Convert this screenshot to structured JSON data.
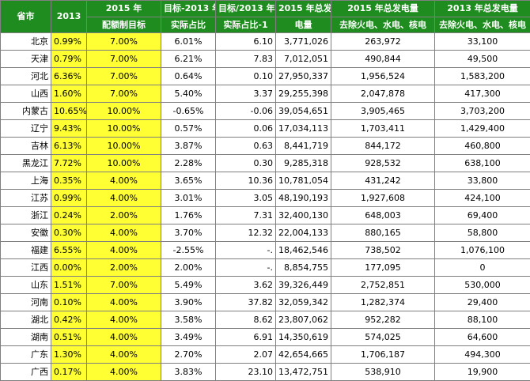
{
  "header": {
    "province": "省市",
    "rate2013": "2013",
    "target2015_l1": "2015 年",
    "target2015_l2": "配额制目标",
    "gap_l1": "目标-2013 年",
    "gap_l2": "实际占比",
    "ratio_l1": "目标/2013 年",
    "ratio_l2": "实际占比-1",
    "total2015_l1": "2015 年总发",
    "total2015_l2": "电量",
    "ex2015_l1": "2015 年总发电量",
    "ex2015_l2": "去除火电、水电、核电",
    "ex2013_l1": "2013 年总发电量",
    "ex2013_l2": "去除火电、水电、核电"
  },
  "rows": [
    {
      "province": "北京",
      "rate2013": "0.99%",
      "target2015": "7.00%",
      "gap": "6.01%",
      "ratio": "6.10",
      "total2015": "3,771,026",
      "ex2015": "263,972",
      "ex2013": "33,100"
    },
    {
      "province": "天津",
      "rate2013": "0.79%",
      "target2015": "7.00%",
      "gap": "6.21%",
      "ratio": "7.83",
      "total2015": "7,012,051",
      "ex2015": "490,844",
      "ex2013": "49,500"
    },
    {
      "province": "河北",
      "rate2013": "6.36%",
      "target2015": "7.00%",
      "gap": "0.64%",
      "ratio": "0.10",
      "total2015": "27,950,337",
      "ex2015": "1,956,524",
      "ex2013": "1,583,200"
    },
    {
      "province": "山西",
      "rate2013": "1.60%",
      "target2015": "7.00%",
      "gap": "5.40%",
      "ratio": "3.37",
      "total2015": "29,255,398",
      "ex2015": "2,047,878",
      "ex2013": "417,300"
    },
    {
      "province": "内蒙古",
      "rate2013": "10.65%",
      "target2015": "10.00%",
      "gap": "-0.65%",
      "ratio": "-0.06",
      "total2015": "39,054,651",
      "ex2015": "3,905,465",
      "ex2013": "3,703,200"
    },
    {
      "province": "辽宁",
      "rate2013": "9.43%",
      "target2015": "10.00%",
      "gap": "0.57%",
      "ratio": "0.06",
      "total2015": "17,034,113",
      "ex2015": "1,703,411",
      "ex2013": "1,429,400"
    },
    {
      "province": "吉林",
      "rate2013": "6.13%",
      "target2015": "10.00%",
      "gap": "3.87%",
      "ratio": "0.63",
      "total2015": "8,441,719",
      "ex2015": "844,172",
      "ex2013": "460,800"
    },
    {
      "province": "黑龙江",
      "rate2013": "7.72%",
      "target2015": "10.00%",
      "gap": "2.28%",
      "ratio": "0.30",
      "total2015": "9,285,318",
      "ex2015": "928,532",
      "ex2013": "638,100"
    },
    {
      "province": "上海",
      "rate2013": "0.35%",
      "target2015": "4.00%",
      "gap": "3.65%",
      "ratio": "10.36",
      "total2015": "10,781,054",
      "ex2015": "431,242",
      "ex2013": "33,800"
    },
    {
      "province": "江苏",
      "rate2013": "0.99%",
      "target2015": "4.00%",
      "gap": "3.01%",
      "ratio": "3.05",
      "total2015": "48,190,193",
      "ex2015": "1,927,608",
      "ex2013": "424,100"
    },
    {
      "province": "浙江",
      "rate2013": "0.24%",
      "target2015": "2.00%",
      "gap": "1.76%",
      "ratio": "7.31",
      "total2015": "32,400,130",
      "ex2015": "648,003",
      "ex2013": "69,400"
    },
    {
      "province": "安徽",
      "rate2013": "0.30%",
      "target2015": "4.00%",
      "gap": "3.70%",
      "ratio": "12.32",
      "total2015": "22,004,133",
      "ex2015": "880,165",
      "ex2013": "58,800"
    },
    {
      "province": "福建",
      "rate2013": "6.55%",
      "target2015": "4.00%",
      "gap": "-2.55%",
      "ratio": "-.",
      "total2015": "18,462,546",
      "ex2015": "738,502",
      "ex2013": "1,076,100"
    },
    {
      "province": "江西",
      "rate2013": "0.00%",
      "target2015": "2.00%",
      "gap": "2.00%",
      "ratio": "-.",
      "total2015": "8,854,755",
      "ex2015": "177,095",
      "ex2013": "0"
    },
    {
      "province": "山东",
      "rate2013": "1.51%",
      "target2015": "7.00%",
      "gap": "5.49%",
      "ratio": "3.62",
      "total2015": "39,326,449",
      "ex2015": "2,752,851",
      "ex2013": "530,000"
    },
    {
      "province": "河南",
      "rate2013": "0.10%",
      "target2015": "4.00%",
      "gap": "3.90%",
      "ratio": "37.82",
      "total2015": "32,059,342",
      "ex2015": "1,282,374",
      "ex2013": "29,400"
    },
    {
      "province": "湖北",
      "rate2013": "0.42%",
      "target2015": "4.00%",
      "gap": "3.58%",
      "ratio": "8.62",
      "total2015": "23,807,062",
      "ex2015": "952,282",
      "ex2013": "88,100"
    },
    {
      "province": "湖南",
      "rate2013": "0.51%",
      "target2015": "4.00%",
      "gap": "3.49%",
      "ratio": "6.91",
      "total2015": "14,350,619",
      "ex2015": "574,025",
      "ex2013": "64,600"
    },
    {
      "province": "广东",
      "rate2013": "1.30%",
      "target2015": "4.00%",
      "gap": "2.70%",
      "ratio": "2.07",
      "total2015": "42,654,665",
      "ex2015": "1,706,187",
      "ex2013": "494,300"
    },
    {
      "province": "广西",
      "rate2013": "0.17%",
      "target2015": "4.00%",
      "gap": "3.83%",
      "ratio": "23.10",
      "total2015": "13,472,751",
      "ex2015": "538,910",
      "ex2013": "19,900"
    }
  ],
  "colors": {
    "header_bg": "#1f8c1f",
    "highlight": "#ffff33"
  }
}
